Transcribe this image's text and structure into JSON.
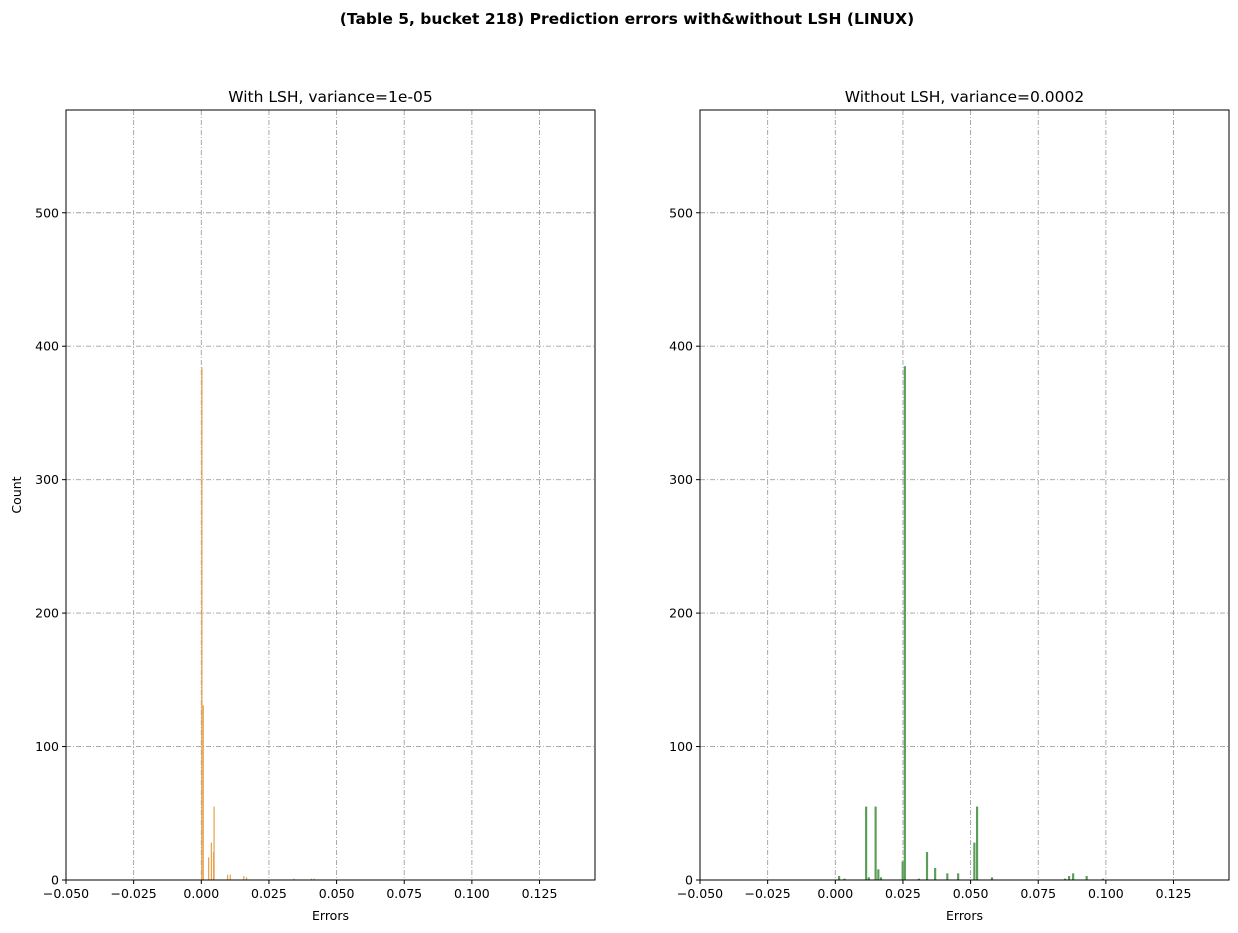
{
  "figure": {
    "title": "(Table 5, bucket 218) Prediction errors with&without LSH (LINUX)"
  },
  "chart_data": [
    {
      "type": "bar",
      "title": "With LSH, variance=1e-05",
      "xlabel": "Errors",
      "ylabel": "Count",
      "xlim": [
        -0.05,
        0.1455
      ],
      "ylim": [
        0,
        577
      ],
      "grid": true,
      "xticks": [
        -0.05,
        -0.025,
        0.0,
        0.025,
        0.05,
        0.075,
        0.1,
        0.125
      ],
      "xtick_labels": [
        "−0.050",
        "−0.025",
        "0.000",
        "0.025",
        "0.050",
        "0.075",
        "0.100",
        "0.125"
      ],
      "yticks": [
        0,
        100,
        200,
        300,
        400,
        500
      ],
      "ytick_labels": [
        "0",
        "100",
        "200",
        "300",
        "400",
        "500"
      ],
      "color": "#e8a04c",
      "bin_width": 0.0004,
      "bars": [
        {
          "x": 0.0,
          "value": 384
        },
        {
          "x": 0.0005,
          "value": 131
        },
        {
          "x": 0.0025,
          "value": 17
        },
        {
          "x": 0.0035,
          "value": 28
        },
        {
          "x": 0.0043,
          "value": 21
        },
        {
          "x": 0.0045,
          "value": 55
        },
        {
          "x": 0.0095,
          "value": 4
        },
        {
          "x": 0.0105,
          "value": 4
        },
        {
          "x": 0.0155,
          "value": 3
        },
        {
          "x": 0.0165,
          "value": 2
        },
        {
          "x": 0.034,
          "value": 1
        },
        {
          "x": 0.0405,
          "value": 1
        },
        {
          "x": 0.0415,
          "value": 1
        }
      ]
    },
    {
      "type": "bar",
      "title": "Without LSH, variance=0.0002",
      "xlabel": "Errors",
      "ylabel": "",
      "xlim": [
        -0.05,
        0.1455
      ],
      "ylim": [
        0,
        577
      ],
      "grid": true,
      "xticks": [
        -0.05,
        -0.025,
        0.0,
        0.025,
        0.05,
        0.075,
        0.1,
        0.125
      ],
      "xtick_labels": [
        "−0.050",
        "−0.025",
        "0.000",
        "0.025",
        "0.050",
        "0.075",
        "0.100",
        "0.125"
      ],
      "yticks": [
        0,
        100,
        200,
        300,
        400,
        500
      ],
      "ytick_labels": [
        "0",
        "100",
        "200",
        "300",
        "400",
        "500"
      ],
      "color": "#5a9e5a",
      "bin_width": 0.0008,
      "bars": [
        {
          "x": 0.001,
          "value": 3
        },
        {
          "x": 0.003,
          "value": 1
        },
        {
          "x": 0.011,
          "value": 55
        },
        {
          "x": 0.012,
          "value": 2
        },
        {
          "x": 0.0145,
          "value": 55
        },
        {
          "x": 0.0155,
          "value": 8
        },
        {
          "x": 0.0165,
          "value": 2
        },
        {
          "x": 0.0245,
          "value": 14
        },
        {
          "x": 0.0253,
          "value": 385
        },
        {
          "x": 0.0305,
          "value": 1
        },
        {
          "x": 0.0335,
          "value": 21
        },
        {
          "x": 0.0365,
          "value": 9
        },
        {
          "x": 0.041,
          "value": 5
        },
        {
          "x": 0.045,
          "value": 5
        },
        {
          "x": 0.051,
          "value": 28
        },
        {
          "x": 0.052,
          "value": 55
        },
        {
          "x": 0.0575,
          "value": 2
        },
        {
          "x": 0.0845,
          "value": 1
        },
        {
          "x": 0.086,
          "value": 3
        },
        {
          "x": 0.0875,
          "value": 5
        },
        {
          "x": 0.0925,
          "value": 3
        },
        {
          "x": 0.0985,
          "value": 1
        }
      ]
    }
  ]
}
